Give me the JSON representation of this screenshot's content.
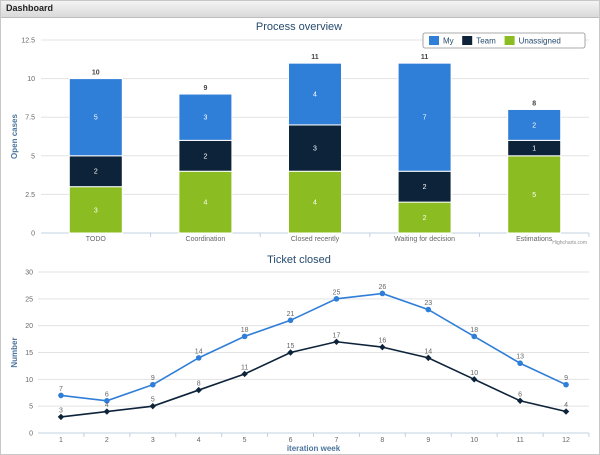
{
  "window": {
    "title": "Dashboard"
  },
  "chart_data": [
    {
      "type": "bar",
      "title": "Process overview",
      "ylabel": "Open cases",
      "xlabel": "",
      "ylim": [
        0,
        12.5
      ],
      "yticks": [
        "0",
        "2.5",
        "5",
        "7.5",
        "10",
        "12.5"
      ],
      "categories": [
        "TODO",
        "Coordination",
        "Closed recently",
        "Waiting for decision",
        "Estimations"
      ],
      "stacked": true,
      "legend": "top-right",
      "series": [
        {
          "name": "My",
          "color": "#2f7ed8",
          "values": [
            5,
            3,
            4,
            7,
            2
          ]
        },
        {
          "name": "Team",
          "color": "#0d233a",
          "values": [
            2,
            2,
            3,
            2,
            1
          ]
        },
        {
          "name": "Unassigned",
          "color": "#8bbc21",
          "values": [
            3,
            4,
            4,
            2,
            5
          ]
        }
      ],
      "totals": [
        10,
        9,
        11,
        11,
        8
      ],
      "credits": "Highcharts.com"
    },
    {
      "type": "line",
      "title": "Ticket closed",
      "ylabel": "Number",
      "xlabel": "iteration week",
      "ylim": [
        0,
        30
      ],
      "yticks": [
        "0",
        "5",
        "10",
        "15",
        "20",
        "25",
        "30"
      ],
      "x": [
        "1",
        "2",
        "3",
        "4",
        "5",
        "6",
        "7",
        "8",
        "9",
        "10",
        "11",
        "12"
      ],
      "series": [
        {
          "color": "#2f7ed8",
          "values": [
            7,
            6,
            9,
            14,
            18,
            21,
            25,
            26,
            23,
            18,
            13,
            9
          ]
        },
        {
          "color": "#0d233a",
          "values": [
            3,
            4,
            5,
            8,
            11,
            15,
            17,
            16,
            14,
            10,
            6,
            4
          ]
        }
      ]
    }
  ]
}
